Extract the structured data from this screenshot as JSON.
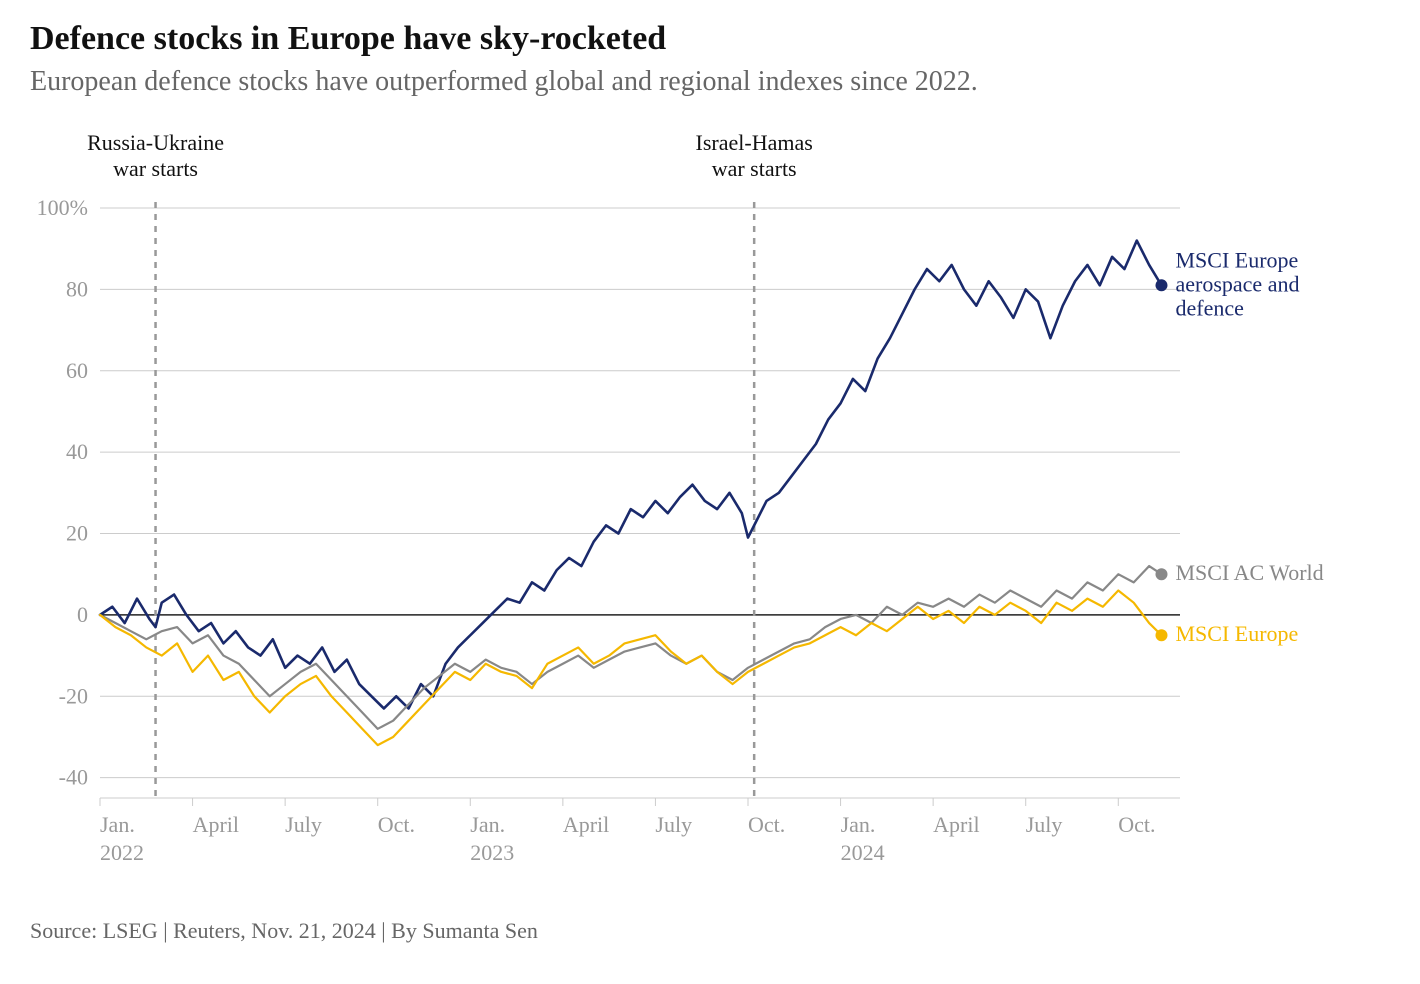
{
  "title": "Defence stocks in Europe have sky-rocketed",
  "subtitle": "European defence stocks have outperformed global and regional indexes since 2022.",
  "footnote": "Source: LSEG | Reuters, Nov. 21, 2024 | By Sumanta Sen",
  "chart": {
    "type": "line",
    "background_color": "#ffffff",
    "grid_color": "#cccccc",
    "gridline_width": 1,
    "zero_line_color": "#222222",
    "zero_line_width": 1.5,
    "axis_label_color": "#999999",
    "axis_label_fontsize": 22,
    "title_fontsize": 34,
    "subtitle_fontsize": 28,
    "xlim": [
      0,
      35
    ],
    "ylim": [
      -45,
      100
    ],
    "yticks": [
      -40,
      -20,
      0,
      20,
      40,
      60,
      80,
      100
    ],
    "ytick_labels": [
      "-40",
      "-20",
      "0",
      "20",
      "40",
      "60",
      "80",
      "100%"
    ],
    "xticks": [
      0,
      3,
      6,
      9,
      12,
      15,
      18,
      21,
      24,
      27,
      30,
      33
    ],
    "xtick_labels": [
      "Jan.",
      "April",
      "July",
      "Oct.",
      "Jan.",
      "April",
      "July",
      "Oct.",
      "Jan.",
      "April",
      "July",
      "Oct."
    ],
    "xtick_year_positions": [
      0,
      12,
      24
    ],
    "xtick_year_labels": [
      "2022",
      "2023",
      "2024"
    ],
    "annotations": [
      {
        "x": 1.8,
        "label": "Russia-Ukraine\nwar starts",
        "line_color": "#999999",
        "text_color": "#111111",
        "dash": "6,6"
      },
      {
        "x": 21.2,
        "label": "Israel-Hamas\nwar starts",
        "line_color": "#999999",
        "text_color": "#111111",
        "dash": "6,6"
      }
    ],
    "series": [
      {
        "name": "MSCI Europe aerospace and defence",
        "color": "#1a2a6c",
        "line_width": 2.6,
        "end_marker_radius": 6,
        "label_lines": [
          "MSCI Europe",
          "aerospace and",
          "defence"
        ],
        "label_color": "#1a2a6c",
        "data": [
          [
            0,
            0
          ],
          [
            0.4,
            2
          ],
          [
            0.8,
            -2
          ],
          [
            1.2,
            4
          ],
          [
            1.6,
            -1
          ],
          [
            1.8,
            -3
          ],
          [
            2,
            3
          ],
          [
            2.4,
            5
          ],
          [
            2.8,
            0
          ],
          [
            3.2,
            -4
          ],
          [
            3.6,
            -2
          ],
          [
            4,
            -7
          ],
          [
            4.4,
            -4
          ],
          [
            4.8,
            -8
          ],
          [
            5.2,
            -10
          ],
          [
            5.6,
            -6
          ],
          [
            6,
            -13
          ],
          [
            6.4,
            -10
          ],
          [
            6.8,
            -12
          ],
          [
            7.2,
            -8
          ],
          [
            7.6,
            -14
          ],
          [
            8,
            -11
          ],
          [
            8.4,
            -17
          ],
          [
            8.8,
            -20
          ],
          [
            9.2,
            -23
          ],
          [
            9.6,
            -20
          ],
          [
            10,
            -23
          ],
          [
            10.4,
            -17
          ],
          [
            10.8,
            -20
          ],
          [
            11.2,
            -12
          ],
          [
            11.6,
            -8
          ],
          [
            12,
            -5
          ],
          [
            12.4,
            -2
          ],
          [
            12.8,
            1
          ],
          [
            13.2,
            4
          ],
          [
            13.6,
            3
          ],
          [
            14,
            8
          ],
          [
            14.4,
            6
          ],
          [
            14.8,
            11
          ],
          [
            15.2,
            14
          ],
          [
            15.6,
            12
          ],
          [
            16,
            18
          ],
          [
            16.4,
            22
          ],
          [
            16.8,
            20
          ],
          [
            17.2,
            26
          ],
          [
            17.6,
            24
          ],
          [
            18,
            28
          ],
          [
            18.4,
            25
          ],
          [
            18.8,
            29
          ],
          [
            19.2,
            32
          ],
          [
            19.6,
            28
          ],
          [
            20,
            26
          ],
          [
            20.4,
            30
          ],
          [
            20.8,
            25
          ],
          [
            21,
            19
          ],
          [
            21.2,
            22
          ],
          [
            21.6,
            28
          ],
          [
            22,
            30
          ],
          [
            22.4,
            34
          ],
          [
            22.8,
            38
          ],
          [
            23.2,
            42
          ],
          [
            23.6,
            48
          ],
          [
            24,
            52
          ],
          [
            24.4,
            58
          ],
          [
            24.8,
            55
          ],
          [
            25.2,
            63
          ],
          [
            25.6,
            68
          ],
          [
            26,
            74
          ],
          [
            26.4,
            80
          ],
          [
            26.8,
            85
          ],
          [
            27.2,
            82
          ],
          [
            27.6,
            86
          ],
          [
            28,
            80
          ],
          [
            28.4,
            76
          ],
          [
            28.8,
            82
          ],
          [
            29.2,
            78
          ],
          [
            29.6,
            73
          ],
          [
            30,
            80
          ],
          [
            30.4,
            77
          ],
          [
            30.8,
            68
          ],
          [
            31.2,
            76
          ],
          [
            31.6,
            82
          ],
          [
            32,
            86
          ],
          [
            32.4,
            81
          ],
          [
            32.8,
            88
          ],
          [
            33.2,
            85
          ],
          [
            33.6,
            92
          ],
          [
            34,
            86
          ],
          [
            34.4,
            81
          ]
        ]
      },
      {
        "name": "MSCI AC World",
        "color": "#888888",
        "line_width": 2.2,
        "end_marker_radius": 6,
        "label_lines": [
          "MSCI AC World"
        ],
        "label_color": "#888888",
        "data": [
          [
            0,
            0
          ],
          [
            0.5,
            -2
          ],
          [
            1,
            -4
          ],
          [
            1.5,
            -6
          ],
          [
            2,
            -4
          ],
          [
            2.5,
            -3
          ],
          [
            3,
            -7
          ],
          [
            3.5,
            -5
          ],
          [
            4,
            -10
          ],
          [
            4.5,
            -12
          ],
          [
            5,
            -16
          ],
          [
            5.5,
            -20
          ],
          [
            6,
            -17
          ],
          [
            6.5,
            -14
          ],
          [
            7,
            -12
          ],
          [
            7.5,
            -16
          ],
          [
            8,
            -20
          ],
          [
            8.5,
            -24
          ],
          [
            9,
            -28
          ],
          [
            9.5,
            -26
          ],
          [
            10,
            -22
          ],
          [
            10.5,
            -18
          ],
          [
            11,
            -15
          ],
          [
            11.5,
            -12
          ],
          [
            12,
            -14
          ],
          [
            12.5,
            -11
          ],
          [
            13,
            -13
          ],
          [
            13.5,
            -14
          ],
          [
            14,
            -17
          ],
          [
            14.5,
            -14
          ],
          [
            15,
            -12
          ],
          [
            15.5,
            -10
          ],
          [
            16,
            -13
          ],
          [
            16.5,
            -11
          ],
          [
            17,
            -9
          ],
          [
            17.5,
            -8
          ],
          [
            18,
            -7
          ],
          [
            18.5,
            -10
          ],
          [
            19,
            -12
          ],
          [
            19.5,
            -10
          ],
          [
            20,
            -14
          ],
          [
            20.5,
            -16
          ],
          [
            21,
            -13
          ],
          [
            21.5,
            -11
          ],
          [
            22,
            -9
          ],
          [
            22.5,
            -7
          ],
          [
            23,
            -6
          ],
          [
            23.5,
            -3
          ],
          [
            24,
            -1
          ],
          [
            24.5,
            0
          ],
          [
            25,
            -2
          ],
          [
            25.5,
            2
          ],
          [
            26,
            0
          ],
          [
            26.5,
            3
          ],
          [
            27,
            2
          ],
          [
            27.5,
            4
          ],
          [
            28,
            2
          ],
          [
            28.5,
            5
          ],
          [
            29,
            3
          ],
          [
            29.5,
            6
          ],
          [
            30,
            4
          ],
          [
            30.5,
            2
          ],
          [
            31,
            6
          ],
          [
            31.5,
            4
          ],
          [
            32,
            8
          ],
          [
            32.5,
            6
          ],
          [
            33,
            10
          ],
          [
            33.5,
            8
          ],
          [
            34,
            12
          ],
          [
            34.4,
            10
          ]
        ]
      },
      {
        "name": "MSCI Europe",
        "color": "#f5b800",
        "line_width": 2.2,
        "end_marker_radius": 6,
        "label_lines": [
          "MSCI Europe"
        ],
        "label_color": "#f5b800",
        "data": [
          [
            0,
            0
          ],
          [
            0.5,
            -3
          ],
          [
            1,
            -5
          ],
          [
            1.5,
            -8
          ],
          [
            2,
            -10
          ],
          [
            2.5,
            -7
          ],
          [
            3,
            -14
          ],
          [
            3.5,
            -10
          ],
          [
            4,
            -16
          ],
          [
            4.5,
            -14
          ],
          [
            5,
            -20
          ],
          [
            5.5,
            -24
          ],
          [
            6,
            -20
          ],
          [
            6.5,
            -17
          ],
          [
            7,
            -15
          ],
          [
            7.5,
            -20
          ],
          [
            8,
            -24
          ],
          [
            8.5,
            -28
          ],
          [
            9,
            -32
          ],
          [
            9.5,
            -30
          ],
          [
            10,
            -26
          ],
          [
            10.5,
            -22
          ],
          [
            11,
            -18
          ],
          [
            11.5,
            -14
          ],
          [
            12,
            -16
          ],
          [
            12.5,
            -12
          ],
          [
            13,
            -14
          ],
          [
            13.5,
            -15
          ],
          [
            14,
            -18
          ],
          [
            14.5,
            -12
          ],
          [
            15,
            -10
          ],
          [
            15.5,
            -8
          ],
          [
            16,
            -12
          ],
          [
            16.5,
            -10
          ],
          [
            17,
            -7
          ],
          [
            17.5,
            -6
          ],
          [
            18,
            -5
          ],
          [
            18.5,
            -9
          ],
          [
            19,
            -12
          ],
          [
            19.5,
            -10
          ],
          [
            20,
            -14
          ],
          [
            20.5,
            -17
          ],
          [
            21,
            -14
          ],
          [
            21.5,
            -12
          ],
          [
            22,
            -10
          ],
          [
            22.5,
            -8
          ],
          [
            23,
            -7
          ],
          [
            23.5,
            -5
          ],
          [
            24,
            -3
          ],
          [
            24.5,
            -5
          ],
          [
            25,
            -2
          ],
          [
            25.5,
            -4
          ],
          [
            26,
            -1
          ],
          [
            26.5,
            2
          ],
          [
            27,
            -1
          ],
          [
            27.5,
            1
          ],
          [
            28,
            -2
          ],
          [
            28.5,
            2
          ],
          [
            29,
            0
          ],
          [
            29.5,
            3
          ],
          [
            30,
            1
          ],
          [
            30.5,
            -2
          ],
          [
            31,
            3
          ],
          [
            31.5,
            1
          ],
          [
            32,
            4
          ],
          [
            32.5,
            2
          ],
          [
            33,
            6
          ],
          [
            33.5,
            3
          ],
          [
            34,
            -2
          ],
          [
            34.4,
            -5
          ]
        ]
      }
    ]
  }
}
